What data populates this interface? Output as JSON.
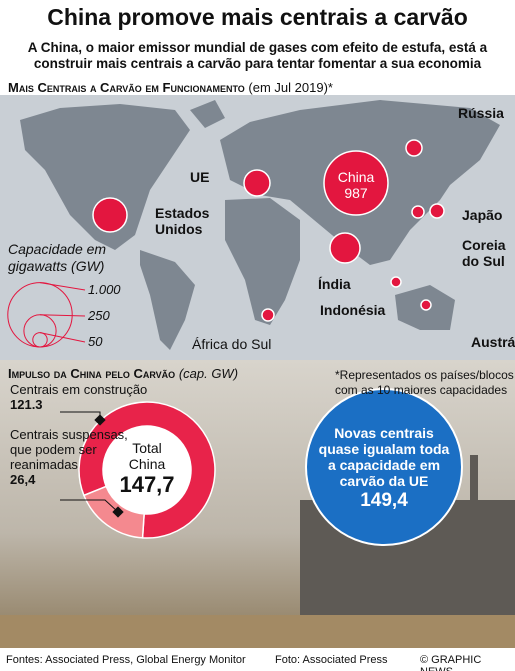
{
  "header": {
    "title": "China promove mais centrais a carvão",
    "subtitle": "A China, o maior emissor mundial de gases com efeito de estufa, está a construir mais centrais a carvão para tentar fomentar a sua economia"
  },
  "chart_data": [
    {
      "type": "bubble-map",
      "title": "Mais Centrais a Carvão em Funcionamento",
      "subtitle": "(em Jul 2019)*",
      "categories": [
        "China",
        "Estados Unidos",
        "Índia",
        "UE",
        "Rússia",
        "Japão",
        "Coreia do Sul",
        "África do Sul",
        "Indonésia",
        "Austrália"
      ],
      "values": [
        987,
        279,
        217,
        163,
        62,
        47,
        35,
        35,
        24,
        24
      ],
      "color": "#e3163f",
      "size_legend": {
        "title": "Capacidade em gigawatts (GW)",
        "ticks": [
          {
            "value": 1000,
            "label": "1.000"
          },
          250,
          50
        ]
      },
      "note": "*Representados os países/blocos com as 10 maiores capacidades"
    },
    {
      "type": "donut",
      "title": "Impulso da China pelo Carvão",
      "unit": "(cap. GW)",
      "categories": [
        "Centrais em construção",
        "Centrais suspensas, que podem ser reanimadas"
      ],
      "values": [
        121.3,
        26.4
      ],
      "value_labels": [
        "121.3",
        "26,4"
      ],
      "colors": [
        "#e8234a",
        "#f4898f"
      ],
      "total_label": "Total China",
      "total": "147,7",
      "callout": {
        "text": "Novas centrais quase igualam toda a capacidade em carvão da UE",
        "value": "149,4"
      }
    }
  ],
  "footer": {
    "sources": "Fontes: Associated Press, Global Energy Monitor",
    "photo": "Foto: Associated Press",
    "credit": "© GRAPHIC NEWS"
  }
}
